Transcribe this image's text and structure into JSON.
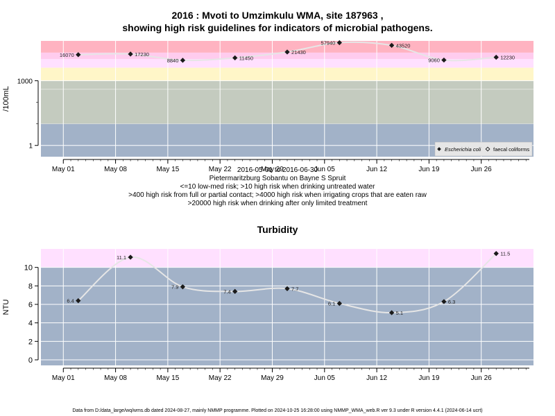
{
  "titles": {
    "main_line1": "2016 : Mvoti to Umzimkulu WMA, site 187963 ,",
    "main_line2": "showing high risk guidelines for indicators of microbial pathogens."
  },
  "captions": [
    "2016-05-01 to 2016-06-30",
    "Pietermaritzburg Sobantu on Bayne S Spruit",
    "<=10 low-med risk; >10 high risk when drinking untreated water",
    ">400 high risk from full or partial contact; >4000 high risk when irrigating crops that are eaten raw",
    ">20000 high risk when drinking after only limited treatment"
  ],
  "footer": "Data from D:/data_large/wq/wms.db dated 2024-08-27, mainly NMMP programme. Plotted on 2024-10-25 16:28:00 using NMMP_WMA_web.R ver 9.3 under R version 4.4.1 (2024-06-14 ucrt)",
  "colors": {
    "band_red": "#ffb3c1",
    "band_pink": "#ffccee",
    "band_lightpink": "#ffe0ff",
    "band_yellow": "#fff6c8",
    "band_sage": "#c4cbbf",
    "band_blue": "#a2b2c8",
    "line": "#e6e6e6",
    "point": "#1a1a1a"
  },
  "chart_data": [
    {
      "type": "line",
      "title": "",
      "ylabel": "/100mL",
      "yscale": "log10",
      "ylim": [
        0.3,
        70000
      ],
      "yticks": [
        1,
        1000
      ],
      "xlim": [
        "2016-04-28",
        "2016-07-03"
      ],
      "xticks": [
        "May 01",
        "May 08",
        "May 15",
        "May 22",
        "May 29",
        "Jun 05",
        "Jun 12",
        "Jun 19",
        "Jun 26"
      ],
      "xtick_dates": [
        "2016-05-01",
        "2016-05-08",
        "2016-05-15",
        "2016-05-22",
        "2016-05-29",
        "2016-06-05",
        "2016-06-12",
        "2016-06-19",
        "2016-06-26"
      ],
      "bands": [
        {
          "from": 20000,
          "to": 70000,
          "color": "#ffb3c1"
        },
        {
          "from": 10000,
          "to": 20000,
          "color": "#ffccee"
        },
        {
          "from": 4000,
          "to": 10000,
          "color": "#ffe0ff"
        },
        {
          "from": 1000,
          "to": 4000,
          "color": "#fff6c8"
        },
        {
          "from": 400,
          "to": 1000,
          "color": "#c4cbbf"
        },
        {
          "from": 10,
          "to": 400,
          "color": "#c4cbbf"
        },
        {
          "from": 0.3,
          "to": 10,
          "color": "#a2b2c8"
        }
      ],
      "legend": {
        "position": "bottom-right",
        "entries": [
          "Escherichia coli",
          "faecal coliforms"
        ]
      },
      "series": [
        {
          "name": "faecal coliforms",
          "x": [
            "2016-05-03",
            "2016-05-10",
            "2016-05-17",
            "2016-05-24",
            "2016-05-31",
            "2016-06-07",
            "2016-06-14",
            "2016-06-21",
            "2016-06-28"
          ],
          "values": [
            16070,
            17230,
            8840,
            11450,
            21430,
            57940,
            43520,
            9060,
            12230
          ],
          "labels": [
            "16070",
            "17230",
            "8840",
            "11450",
            "21430",
            "57940",
            "43520",
            "9060",
            "12230"
          ],
          "label_side": [
            "left",
            "right",
            "left",
            "right",
            "right",
            "left",
            "right",
            "left",
            "right"
          ]
        }
      ]
    },
    {
      "type": "line",
      "title": "Turbidity",
      "ylabel": "NTU",
      "ylim": [
        -0.6,
        12
      ],
      "yticks": [
        0,
        2,
        4,
        6,
        8,
        10
      ],
      "xlim": [
        "2016-04-28",
        "2016-07-03"
      ],
      "xticks": [
        "May 01",
        "May 08",
        "May 15",
        "May 22",
        "May 29",
        "Jun 05",
        "Jun 12",
        "Jun 19",
        "Jun 26"
      ],
      "xtick_dates": [
        "2016-05-01",
        "2016-05-08",
        "2016-05-15",
        "2016-05-22",
        "2016-05-29",
        "2016-06-05",
        "2016-06-12",
        "2016-06-19",
        "2016-06-26"
      ],
      "bands": [
        {
          "from": 10,
          "to": 12,
          "color": "#ffe0ff"
        },
        {
          "from": -0.6,
          "to": 10,
          "color": "#a2b2c8"
        }
      ],
      "series": [
        {
          "x": [
            "2016-05-03",
            "2016-05-10",
            "2016-05-17",
            "2016-05-24",
            "2016-05-31",
            "2016-06-07",
            "2016-06-14",
            "2016-06-21",
            "2016-06-28"
          ],
          "values": [
            6.4,
            11.1,
            7.9,
            7.4,
            7.7,
            6.1,
            5.1,
            6.3,
            11.5
          ],
          "labels": [
            "6.4",
            "11.1",
            "7.9",
            "7.4",
            "7.7",
            "6.1",
            "5.1",
            "6.3",
            "11.5"
          ],
          "label_side": [
            "left",
            "left",
            "left",
            "left",
            "right",
            "left",
            "right",
            "right",
            "right"
          ]
        }
      ]
    }
  ]
}
